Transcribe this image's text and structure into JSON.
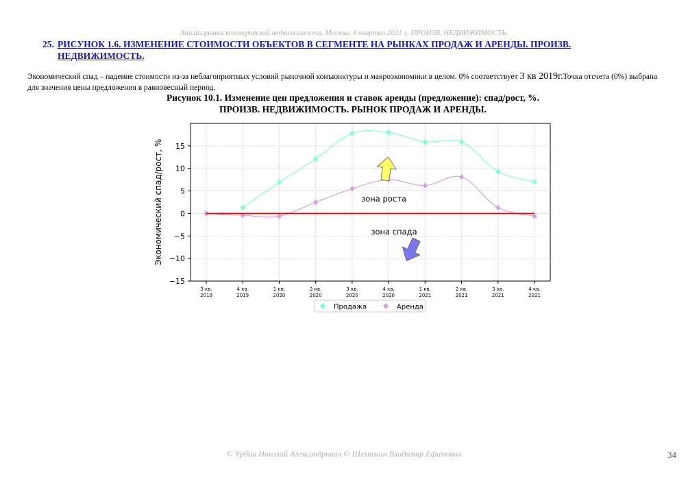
{
  "page": {
    "header": "Анализ рынка коммерческой недвижимости.  Москва,  4 квартал 2021 г.  ПРОИЗВ. НЕДВИЖИМОСТЬ.",
    "section_number": "25.",
    "section_title": "РИСУНОК 1.6. ИЗМЕНЕНИЕ СТОИМОСТИ ОБЪЕКТОВ В СЕГМЕНТЕ НА РЫНКАХ ПРОДАЖ И АРЕНДЫ. ПРОИЗВ. НЕДВИЖИМОСТЬ.",
    "description_part1": "Экономический спад – падение стоимости из-за неблагоприятных условий рыночной конъюнктуры и макроэкономики в целом. 0% соответствует ",
    "description_big": "3 кв 2019г.",
    "description_part2": "Точка отсчета (0%) выбрана для значения цены предложения в равновесный период.",
    "figure_title_line1": "Рисунок 10.1. Изменение цен предложения и ставок аренды (предложение): спад/рост, %.",
    "figure_title_line2": "ПРОИЗВ. НЕДВИЖИМОСТЬ. РЫНОК ПРОДАЖ И АРЕНДЫ.",
    "footer": "© Урбан Николай Александрович   © Шехтман Владимир Ефимович",
    "page_number": "34"
  },
  "colors": {
    "sales": "#7fffd4",
    "rent": "#d9a0e0",
    "zero_line": "#ff0000",
    "growth_arrow": "#ffff66",
    "decline_arrow": "#7b78ef",
    "section_title": "#1a1aa8"
  },
  "chart_data": {
    "type": "line",
    "categories": [
      "3 кв.\n2019",
      "4 кв.\n2019",
      "1 кв.\n2020",
      "2 кв.\n2020",
      "3 кв.\n2020",
      "4 кв.\n2020",
      "1 кв.\n2021",
      "2 кв.\n2021",
      "3 кв.\n2021",
      "4 кв.\n2021"
    ],
    "series": [
      {
        "name": "Продажа",
        "values": [
          null,
          1.3,
          6.9,
          12.1,
          17.8,
          18.0,
          15.9,
          15.9,
          9.3,
          7.0
        ],
        "marker": "diamond",
        "smooth": true
      },
      {
        "name": "Аренда",
        "values": [
          0,
          -0.4,
          -0.6,
          2.5,
          5.5,
          7.5,
          6.2,
          8.1,
          1.3,
          -0.6
        ],
        "marker": "diamond",
        "smooth": true
      }
    ],
    "zero_line": {
      "value": 0,
      "from_category": 0,
      "to_category": 9
    },
    "ylabel": "Экономический спад/рост, %",
    "xlabel": "",
    "ylim": [
      -15,
      20
    ],
    "yticks": [
      -15,
      -10,
      -5,
      0,
      5,
      10,
      15
    ],
    "grid": true,
    "legend_position": "bottom-center",
    "annotations": [
      {
        "text": "зона роста",
        "arrow": "up"
      },
      {
        "text": "зона спада",
        "arrow": "down"
      }
    ]
  }
}
